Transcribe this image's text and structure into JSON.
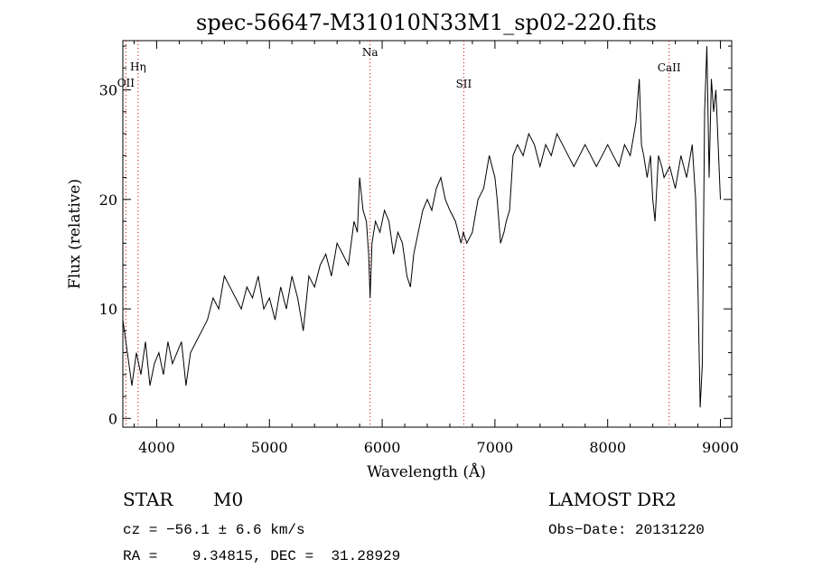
{
  "chart_data": {
    "type": "line",
    "title": "spec-56647-M31010N33M1_sp02-220.fits",
    "xlabel": "Wavelength (Å)",
    "ylabel": "Flux (relative)",
    "xlim": [
      3700,
      9100
    ],
    "ylim": [
      -0.8,
      34.5
    ],
    "x_ticks": [
      {
        "value": 4000,
        "label": "4000"
      },
      {
        "value": 5000,
        "label": "5000"
      },
      {
        "value": 6000,
        "label": "6000"
      },
      {
        "value": 7000,
        "label": "7000"
      },
      {
        "value": 8000,
        "label": "8000"
      },
      {
        "value": 9000,
        "label": "9000"
      }
    ],
    "y_ticks": [
      {
        "value": 0,
        "label": "0"
      },
      {
        "value": 10,
        "label": "10"
      },
      {
        "value": 20,
        "label": "20"
      },
      {
        "value": 30,
        "label": "30"
      }
    ],
    "grid": false,
    "line_markers": [
      {
        "label": "OII",
        "x": 3727
      },
      {
        "label": "Hη",
        "x": 3835
      },
      {
        "label": "Na",
        "x": 5893
      },
      {
        "label": "SII",
        "x": 6724
      },
      {
        "label": "CaII",
        "x": 8545
      }
    ],
    "series": [
      {
        "color": "#000000",
        "x": [
          3700,
          3740,
          3780,
          3820,
          3860,
          3900,
          3940,
          3980,
          4020,
          4060,
          4100,
          4140,
          4180,
          4220,
          4260,
          4300,
          4350,
          4400,
          4450,
          4500,
          4550,
          4600,
          4650,
          4700,
          4750,
          4800,
          4850,
          4900,
          4950,
          5000,
          5050,
          5100,
          5150,
          5200,
          5250,
          5300,
          5350,
          5400,
          5450,
          5500,
          5550,
          5600,
          5650,
          5700,
          5750,
          5780,
          5800,
          5830,
          5860,
          5880,
          5893,
          5910,
          5940,
          5980,
          6020,
          6060,
          6100,
          6140,
          6180,
          6220,
          6250,
          6280,
          6320,
          6360,
          6400,
          6440,
          6480,
          6520,
          6560,
          6600,
          6650,
          6700,
          6720,
          6750,
          6800,
          6850,
          6900,
          6950,
          7000,
          7020,
          7050,
          7080,
          7100,
          7130,
          7160,
          7200,
          7250,
          7300,
          7350,
          7400,
          7450,
          7500,
          7550,
          7600,
          7650,
          7700,
          7750,
          7800,
          7850,
          7900,
          7950,
          8000,
          8050,
          8100,
          8150,
          8200,
          8250,
          8280,
          8300,
          8320,
          8350,
          8380,
          8400,
          8420,
          8450,
          8480,
          8500,
          8550,
          8600,
          8650,
          8700,
          8750,
          8780,
          8800,
          8820,
          8840,
          8860,
          8880,
          8900,
          8920,
          8940,
          8960,
          8980,
          9000
        ],
        "y": [
          9,
          6,
          3,
          6,
          4,
          7,
          3,
          5,
          6,
          4,
          7,
          5,
          6,
          7,
          3,
          6,
          7,
          8,
          9,
          11,
          10,
          13,
          12,
          11,
          10,
          12,
          11,
          13,
          10,
          11,
          9,
          12,
          10,
          13,
          11,
          8,
          13,
          12,
          14,
          15,
          13,
          16,
          15,
          14,
          18,
          17,
          22,
          19,
          18,
          15,
          11,
          16,
          18,
          17,
          19,
          18,
          15,
          17,
          16,
          13,
          12,
          15,
          17,
          19,
          20,
          19,
          21,
          22,
          20,
          19,
          18,
          16,
          17,
          16,
          17,
          20,
          21,
          24,
          22,
          20,
          16,
          17,
          18,
          19,
          24,
          25,
          24,
          26,
          25,
          23,
          25,
          24,
          26,
          25,
          24,
          23,
          24,
          25,
          24,
          23,
          24,
          25,
          24,
          23,
          25,
          24,
          27,
          31,
          25,
          24,
          22,
          24,
          20,
          18,
          24,
          23,
          22,
          23,
          21,
          24,
          22,
          25,
          20,
          12,
          1,
          5,
          28,
          34,
          22,
          31,
          28,
          30,
          25,
          20
        ]
      }
    ],
    "annotations": {
      "object_class": "STAR",
      "subclass": "M0",
      "survey": "LAMOST DR2",
      "cz": "cz = −56.1 ± 6.6 km/s",
      "obs_date": "Obs−Date: 20131220",
      "coords": "RA =    9.34815, DEC =  31.28929"
    }
  }
}
